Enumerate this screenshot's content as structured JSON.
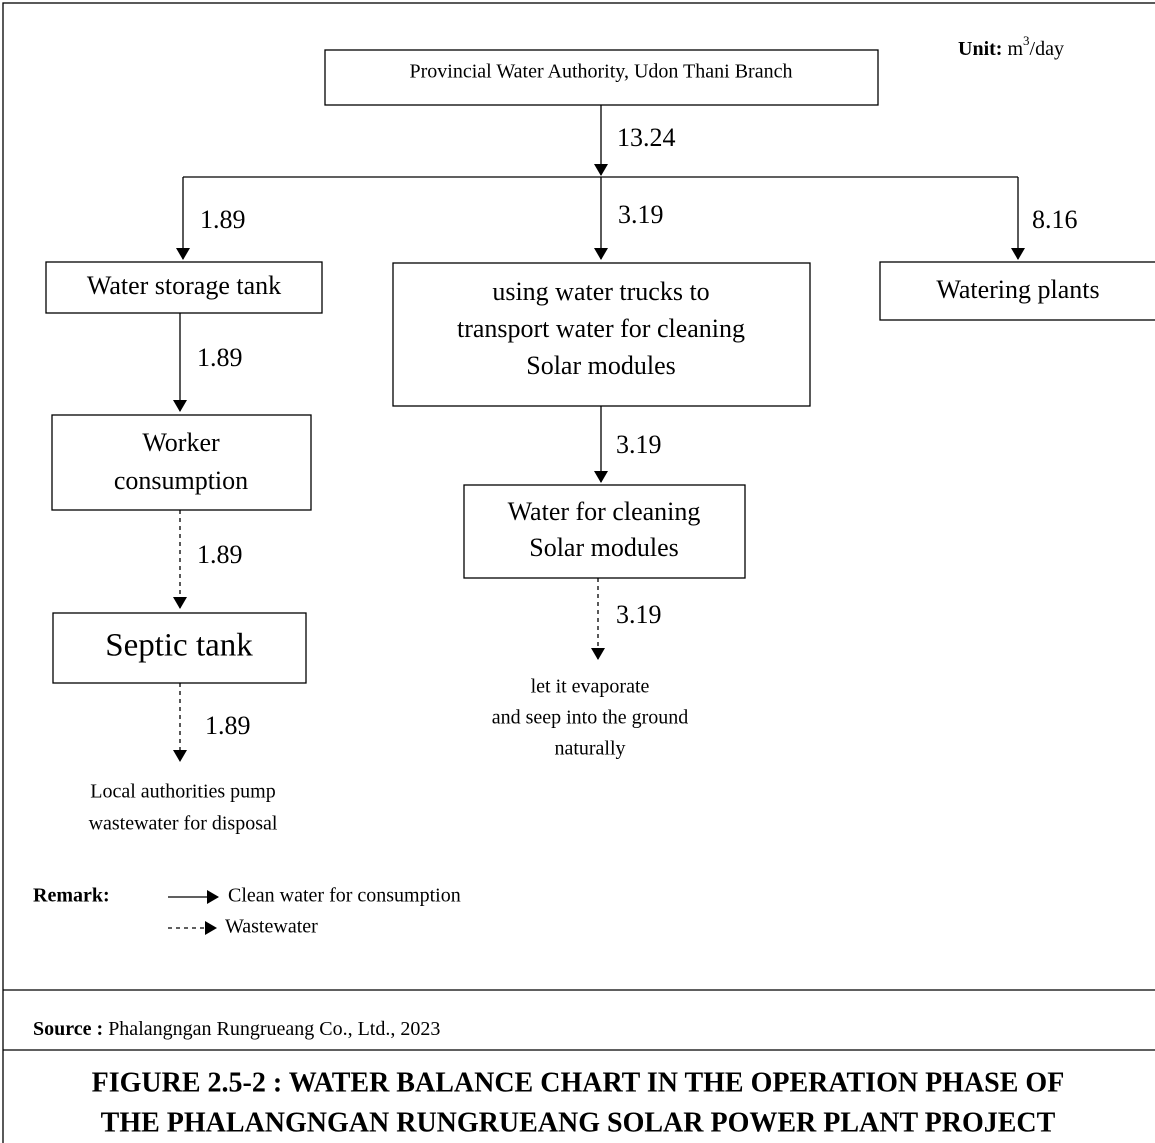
{
  "unit": {
    "label": "Unit:",
    "base": "m",
    "sup": "3",
    "rest": "/day"
  },
  "nodes": [
    {
      "lines": [
        "Provincial Water Authority, Udon Thani Branch"
      ]
    },
    {
      "lines": [
        "Water storage tank"
      ]
    },
    {
      "lines": [
        "using water trucks to",
        "transport water for cleaning",
        "Solar modules"
      ]
    },
    {
      "lines": [
        "Watering plants"
      ]
    },
    {
      "lines": [
        "Worker",
        "consumption"
      ]
    },
    {
      "lines": [
        "Septic tank"
      ]
    },
    {
      "lines": [
        "Water for cleaning",
        "Solar modules"
      ]
    }
  ],
  "flows": [
    "13.24",
    "1.89",
    "3.19",
    "8.16",
    "1.89",
    "1.89",
    "1.89",
    "3.19",
    "3.19"
  ],
  "outcomes": [
    {
      "lines": [
        "Local authorities pump",
        "wastewater for disposal"
      ]
    },
    {
      "lines": [
        "let it evaporate",
        "and seep into the ground",
        "naturally"
      ]
    }
  ],
  "remark": {
    "label": "Remark:",
    "items": [
      "Clean water for consumption",
      "Wastewater"
    ]
  },
  "source": {
    "label": "Source :",
    "text": "Phalangngan Rungrueang Co., Ltd., 2023"
  },
  "figure_title": [
    "FIGURE 2.5-2 : WATER BALANCE CHART IN THE OPERATION PHASE OF",
    "THE PHALANGNGAN RUNGRUEANG SOLAR POWER PLANT PROJECT"
  ]
}
